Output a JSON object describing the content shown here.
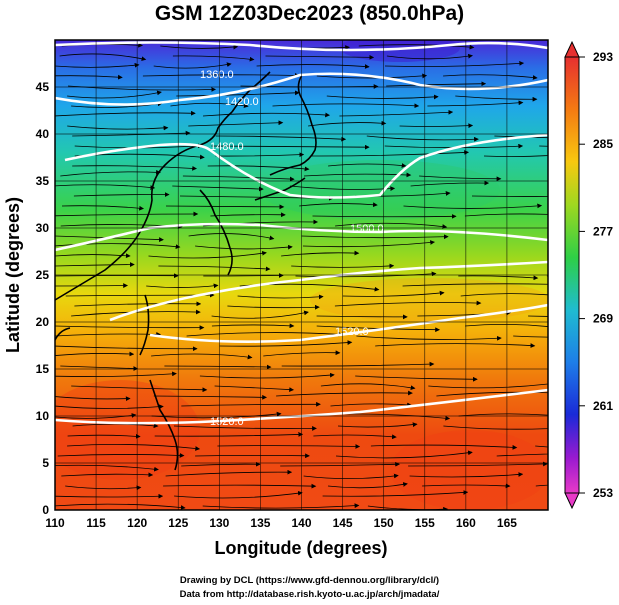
{
  "title": "GSM 12Z03Dec2023 (850.0hPa)",
  "axes": {
    "xlabel": "Longitude (degrees)",
    "ylabel": "Latitude (degrees)",
    "xticks": [
      "110",
      "115",
      "120",
      "125",
      "130",
      "135",
      "140",
      "145",
      "150",
      "155",
      "160",
      "165"
    ],
    "yticks": [
      "0",
      "5",
      "10",
      "15",
      "20",
      "25",
      "30",
      "35",
      "40",
      "45"
    ],
    "xlim": [
      110,
      170
    ],
    "ylim": [
      0,
      50
    ]
  },
  "colorbar": {
    "labels": [
      "293",
      "285",
      "277",
      "269",
      "261",
      "253"
    ],
    "range": [
      253,
      293
    ]
  },
  "contours": [
    {
      "label": "1360.0"
    },
    {
      "label": "1420.0"
    },
    {
      "label": "1480.0"
    },
    {
      "label": "1500.0"
    },
    {
      "label": "1520.0"
    },
    {
      "label": "1520.0"
    }
  ],
  "credits": {
    "line1": "Drawing by DCL (https://www.gfd-dennou.org/library/dcl/)",
    "line2": "Data from http://database.rish.kyoto-u.ac.jp/arch/jmadata/"
  }
}
